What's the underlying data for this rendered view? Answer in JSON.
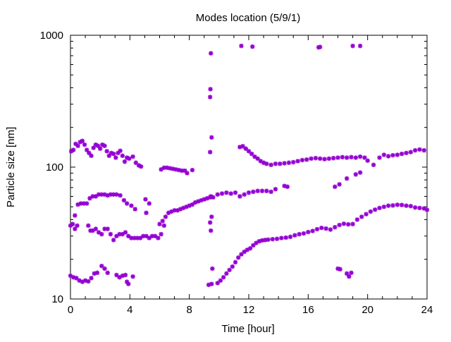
{
  "chart_data": {
    "type": "scatter",
    "title": "Modes location (5/9/1)",
    "xlabel": "Time [hour]",
    "ylabel": "Particle size [nm]",
    "xlim": [
      0,
      24
    ],
    "ylim": [
      10,
      1000
    ],
    "yscale": "log",
    "grid": false,
    "marker_color": "#9400d3",
    "x_ticks": [
      0,
      4,
      8,
      12,
      16,
      20,
      24
    ],
    "x_tick_labels": [
      "0",
      "4",
      "8",
      "12",
      "16",
      "20",
      "24"
    ],
    "y_ticks": [
      10,
      100,
      1000
    ],
    "y_tick_labels": [
      "10",
      "100",
      "1000"
    ],
    "series": [
      {
        "values": [
          [
            0.05,
            132
          ],
          [
            0.2,
            135
          ],
          [
            0.35,
            150
          ],
          [
            0.5,
            145
          ],
          [
            0.65,
            155
          ],
          [
            0.8,
            158
          ],
          [
            0.95,
            148
          ],
          [
            1.1,
            135
          ],
          [
            1.25,
            128
          ],
          [
            1.4,
            122
          ],
          [
            1.55,
            140
          ],
          [
            1.7,
            148
          ],
          [
            1.85,
            145
          ],
          [
            2.0,
            138
          ],
          [
            2.15,
            148
          ],
          [
            2.3,
            145
          ],
          [
            2.45,
            132
          ],
          [
            2.6,
            122
          ],
          [
            2.75,
            128
          ],
          [
            2.9,
            126
          ],
          [
            3.05,
            118
          ],
          [
            3.2,
            128
          ],
          [
            3.35,
            133
          ],
          [
            3.5,
            122
          ],
          [
            3.65,
            110
          ],
          [
            3.8,
            118
          ],
          [
            3.95,
            116
          ],
          [
            4.2,
            120
          ],
          [
            4.4,
            108
          ],
          [
            4.6,
            103
          ],
          [
            4.75,
            101
          ],
          [
            6.1,
            96
          ],
          [
            6.3,
            99
          ],
          [
            6.5,
            99
          ],
          [
            6.7,
            98
          ],
          [
            6.9,
            97
          ],
          [
            7.1,
            96
          ],
          [
            7.3,
            95
          ],
          [
            7.5,
            94
          ],
          [
            7.7,
            94
          ],
          [
            7.85,
            90
          ],
          [
            8.2,
            95
          ],
          [
            11.4,
            142
          ],
          [
            11.6,
            144
          ],
          [
            11.8,
            138
          ],
          [
            12.0,
            132
          ],
          [
            12.2,
            126
          ],
          [
            12.4,
            120
          ],
          [
            12.6,
            116
          ],
          [
            12.8,
            111
          ],
          [
            13.0,
            108
          ],
          [
            13.2,
            106
          ],
          [
            13.5,
            104
          ],
          [
            13.8,
            106
          ],
          [
            14.1,
            106
          ],
          [
            14.4,
            107
          ],
          [
            14.7,
            108
          ],
          [
            15.0,
            109
          ],
          [
            15.3,
            111
          ],
          [
            15.6,
            113
          ],
          [
            15.9,
            114
          ],
          [
            16.2,
            116
          ],
          [
            16.5,
            117
          ],
          [
            16.8,
            116
          ],
          [
            17.1,
            115
          ],
          [
            17.4,
            116
          ],
          [
            17.7,
            117
          ],
          [
            18.0,
            118
          ],
          [
            18.3,
            119
          ],
          [
            18.6,
            118
          ],
          [
            18.9,
            119
          ],
          [
            19.2,
            118
          ],
          [
            19.5,
            120
          ],
          [
            19.8,
            118
          ],
          [
            20.0,
            112
          ],
          [
            20.4,
            104
          ],
          [
            20.8,
            118
          ],
          [
            21.1,
            124
          ],
          [
            21.4,
            121
          ],
          [
            21.7,
            123
          ],
          [
            22.0,
            124
          ],
          [
            22.3,
            126
          ],
          [
            22.6,
            128
          ],
          [
            22.9,
            130
          ],
          [
            23.2,
            134
          ],
          [
            23.5,
            136
          ],
          [
            23.8,
            134
          ],
          [
            0.3,
            43
          ],
          [
            0.5,
            52
          ],
          [
            0.7,
            53
          ],
          [
            0.9,
            53
          ],
          [
            1.1,
            53
          ],
          [
            1.3,
            58
          ],
          [
            1.5,
            60
          ],
          [
            1.7,
            60
          ],
          [
            1.9,
            62
          ],
          [
            2.1,
            62
          ],
          [
            2.3,
            62
          ],
          [
            2.5,
            61
          ],
          [
            2.7,
            62
          ],
          [
            2.9,
            62
          ],
          [
            3.1,
            62
          ],
          [
            3.35,
            61
          ],
          [
            3.6,
            56
          ],
          [
            3.8,
            53
          ],
          [
            4.1,
            51
          ],
          [
            4.35,
            48
          ],
          [
            5.05,
            57
          ],
          [
            5.1,
            45
          ],
          [
            5.3,
            53
          ],
          [
            6.0,
            37
          ],
          [
            6.2,
            39
          ],
          [
            6.4,
            42
          ],
          [
            6.6,
            45
          ],
          [
            6.8,
            46
          ],
          [
            7.0,
            47
          ],
          [
            7.2,
            47
          ],
          [
            7.4,
            48
          ],
          [
            7.6,
            49
          ],
          [
            7.8,
            50
          ],
          [
            8.0,
            51
          ],
          [
            8.2,
            52
          ],
          [
            8.4,
            54
          ],
          [
            8.6,
            55
          ],
          [
            8.8,
            56
          ],
          [
            9.0,
            57
          ],
          [
            9.2,
            58
          ],
          [
            9.4,
            59
          ],
          [
            9.6,
            59
          ],
          [
            9.9,
            62
          ],
          [
            10.2,
            63
          ],
          [
            10.5,
            64
          ],
          [
            10.8,
            63
          ],
          [
            11.1,
            64
          ],
          [
            11.4,
            60
          ],
          [
            11.7,
            62
          ],
          [
            12.0,
            64
          ],
          [
            12.3,
            65
          ],
          [
            12.6,
            66
          ],
          [
            12.9,
            66
          ],
          [
            13.2,
            66
          ],
          [
            13.5,
            65
          ],
          [
            13.8,
            68
          ],
          [
            14.4,
            72
          ],
          [
            14.6,
            71
          ],
          [
            17.8,
            71
          ],
          [
            18.1,
            74
          ],
          [
            18.6,
            82
          ],
          [
            19.2,
            88
          ],
          [
            19.5,
            91
          ],
          [
            0.0,
            36
          ],
          [
            0.15,
            37
          ],
          [
            0.3,
            34
          ],
          [
            0.45,
            36
          ],
          [
            1.2,
            36
          ],
          [
            1.35,
            33
          ],
          [
            1.5,
            33
          ],
          [
            1.7,
            34
          ],
          [
            1.9,
            32
          ],
          [
            2.1,
            31
          ],
          [
            2.3,
            34
          ],
          [
            2.5,
            34
          ],
          [
            2.7,
            31
          ],
          [
            2.9,
            28
          ],
          [
            3.1,
            30
          ],
          [
            3.3,
            31
          ],
          [
            3.5,
            31
          ],
          [
            3.7,
            32
          ],
          [
            3.9,
            30
          ],
          [
            4.1,
            29
          ],
          [
            4.3,
            29
          ],
          [
            4.5,
            29
          ],
          [
            4.7,
            29
          ],
          [
            4.9,
            30
          ],
          [
            5.1,
            30
          ],
          [
            5.3,
            29
          ],
          [
            5.5,
            30
          ],
          [
            5.7,
            30
          ],
          [
            5.9,
            29
          ],
          [
            6.1,
            31
          ],
          [
            6.3,
            36
          ],
          [
            9.4,
            38
          ],
          [
            9.45,
            33
          ],
          [
            9.5,
            42
          ],
          [
            9.45,
            60
          ],
          [
            0.0,
            15
          ],
          [
            0.2,
            14.6
          ],
          [
            0.4,
            14.4
          ],
          [
            0.6,
            13.8
          ],
          [
            0.8,
            13.5
          ],
          [
            1.0,
            13.8
          ],
          [
            1.2,
            13.6
          ],
          [
            1.4,
            14.4
          ],
          [
            1.6,
            15.6
          ],
          [
            1.8,
            15.8
          ],
          [
            2.1,
            17.8
          ],
          [
            2.3,
            17.0
          ],
          [
            2.5,
            15.8
          ],
          [
            3.1,
            15.2
          ],
          [
            3.3,
            14.6
          ],
          [
            3.5,
            15.0
          ],
          [
            3.7,
            15.2
          ],
          [
            3.8,
            13.5
          ],
          [
            3.9,
            13.0
          ],
          [
            4.2,
            14.8
          ],
          [
            9.3,
            12.8
          ],
          [
            9.5,
            13.0
          ],
          [
            9.55,
            17.0
          ],
          [
            9.9,
            13.2
          ],
          [
            10.1,
            13.8
          ],
          [
            10.3,
            14.6
          ],
          [
            10.5,
            15.6
          ],
          [
            10.7,
            16.6
          ],
          [
            10.9,
            17.6
          ],
          [
            11.1,
            19.0
          ],
          [
            11.3,
            20.6
          ],
          [
            11.5,
            21.8
          ],
          [
            11.7,
            22.8
          ],
          [
            11.9,
            23.6
          ],
          [
            12.1,
            24.2
          ],
          [
            12.3,
            25.5
          ],
          [
            12.5,
            26.6
          ],
          [
            12.7,
            27.4
          ],
          [
            12.9,
            27.8
          ],
          [
            13.1,
            28.0
          ],
          [
            13.3,
            28.2
          ],
          [
            13.6,
            28.4
          ],
          [
            13.9,
            28.6
          ],
          [
            14.2,
            29.0
          ],
          [
            14.5,
            29.2
          ],
          [
            14.8,
            29.6
          ],
          [
            15.1,
            30.4
          ],
          [
            15.4,
            31.0
          ],
          [
            15.7,
            31.4
          ],
          [
            16.0,
            32.2
          ],
          [
            16.3,
            32.8
          ],
          [
            16.6,
            33.8
          ],
          [
            16.9,
            34.6
          ],
          [
            17.2,
            34.2
          ],
          [
            17.5,
            33.6
          ],
          [
            17.8,
            35.0
          ],
          [
            18.1,
            36.4
          ],
          [
            18.4,
            37.2
          ],
          [
            18.7,
            36.8
          ],
          [
            19.0,
            37.0
          ],
          [
            19.3,
            40.0
          ],
          [
            19.6,
            42.0
          ],
          [
            19.9,
            44.0
          ],
          [
            20.2,
            46.0
          ],
          [
            20.5,
            47.6
          ],
          [
            20.8,
            49.0
          ],
          [
            21.1,
            50.0
          ],
          [
            21.4,
            51.0
          ],
          [
            21.7,
            51.2
          ],
          [
            22.0,
            51.8
          ],
          [
            22.3,
            51.6
          ],
          [
            22.6,
            51.0
          ],
          [
            22.9,
            50.6
          ],
          [
            23.2,
            49.4
          ],
          [
            23.5,
            49.0
          ],
          [
            23.8,
            48.6
          ],
          [
            24.0,
            47.4
          ],
          [
            18.0,
            17.0
          ],
          [
            18.15,
            16.8
          ],
          [
            18.6,
            15.6
          ],
          [
            18.75,
            14.8
          ],
          [
            18.9,
            15.8
          ],
          [
            9.4,
            340
          ],
          [
            9.42,
            390
          ],
          [
            9.45,
            730
          ],
          [
            9.5,
            168
          ],
          [
            9.4,
            130
          ],
          [
            11.5,
            830
          ],
          [
            12.25,
            820
          ],
          [
            16.7,
            810
          ],
          [
            16.8,
            815
          ],
          [
            19.0,
            830
          ],
          [
            19.5,
            830
          ]
        ]
      }
    ]
  }
}
